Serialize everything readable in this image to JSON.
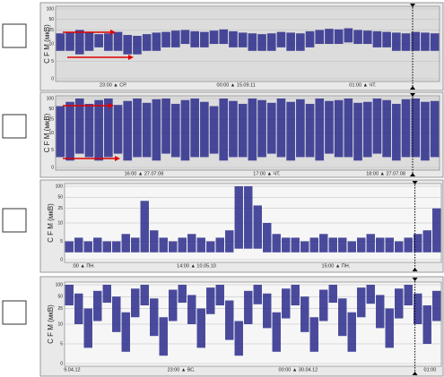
{
  "chart_data": [
    {
      "type": "line",
      "y_label": "C F M (мкВ)",
      "yscale": "semilog",
      "ylim": [
        0,
        100
      ],
      "yticks": [
        0,
        5,
        10,
        25,
        50,
        100
      ],
      "color": "#2b2b8c",
      "x_labels": [
        "23:00 ▲ СР.",
        "00:00 ▲ 15.09.11",
        "01:00 ▲ ЧТ."
      ],
      "upper": [
        20,
        22,
        25,
        21,
        19,
        20,
        22,
        18,
        17,
        19,
        21,
        22,
        24,
        25,
        23,
        22,
        24,
        26,
        23,
        21,
        20,
        19,
        20,
        22,
        21,
        20,
        23,
        25,
        27,
        26,
        28,
        25,
        24,
        23,
        22,
        21,
        20,
        22,
        21,
        20
      ],
      "lower": [
        8,
        8,
        7,
        8,
        9,
        8,
        8,
        7,
        7,
        8,
        8,
        9,
        9,
        10,
        9,
        9,
        10,
        10,
        9,
        9,
        8,
        8,
        8,
        9,
        8,
        8,
        9,
        10,
        10,
        10,
        11,
        10,
        10,
        9,
        9,
        8,
        8,
        8,
        8,
        8
      ]
    },
    {
      "type": "line",
      "y_label": "C F M (мкВ)",
      "yscale": "semilog",
      "ylim": [
        0,
        100
      ],
      "yticks": [
        0,
        5,
        10,
        25,
        50,
        100
      ],
      "color": "#2b2b8c",
      "x_labels": [
        "16:00 ▲ 27.07.08",
        "17:00 ▲ ЧТ.",
        "18:00 ▲ 27.07.08"
      ],
      "upper": [
        60,
        80,
        100,
        70,
        90,
        100,
        65,
        85,
        100,
        75,
        95,
        100,
        70,
        90,
        100,
        80,
        60,
        100,
        85,
        70,
        100,
        90,
        75,
        100,
        80,
        95,
        70,
        100,
        85,
        90,
        100,
        75,
        80,
        100,
        90,
        70,
        95,
        100,
        80,
        85
      ],
      "lower": [
        3,
        2,
        4,
        3,
        2,
        3,
        4,
        2,
        3,
        3,
        2,
        4,
        3,
        2,
        3,
        3,
        4,
        2,
        3,
        3,
        2,
        3,
        4,
        3,
        2,
        3,
        3,
        2,
        4,
        3,
        3,
        2,
        3,
        4,
        3,
        2,
        3,
        3,
        2,
        3
      ]
    },
    {
      "type": "line",
      "y_label": "C F M (мкВ)",
      "yscale": "semilog",
      "ylim": [
        0,
        100
      ],
      "yticks": [
        0,
        5,
        10,
        25,
        50,
        100
      ],
      "color": "#2b2b8c",
      "x_labels": ":00 ▲ ПН.",
      "x_labels_rest": [
        "14:00 ▲ 10.05.10",
        "15:00 ▲ ПН."
      ],
      "upper": [
        5,
        6,
        5,
        6,
        5,
        5,
        7,
        6,
        40,
        8,
        6,
        5,
        6,
        7,
        6,
        5,
        6,
        8,
        100,
        100,
        30,
        10,
        7,
        6,
        6,
        5,
        6,
        7,
        6,
        6,
        5,
        6,
        7,
        6,
        6,
        5,
        6,
        7,
        8,
        25
      ],
      "lower": [
        2,
        2,
        2,
        2,
        2,
        2,
        2,
        2,
        2,
        2,
        2,
        2,
        2,
        2,
        2,
        2,
        2,
        2,
        3,
        3,
        3,
        2,
        2,
        2,
        2,
        2,
        2,
        2,
        2,
        2,
        2,
        2,
        2,
        2,
        2,
        2,
        2,
        2,
        2,
        2
      ]
    },
    {
      "type": "line",
      "y_label": "C F M (мкВ)",
      "yscale": "semilog",
      "ylim": [
        0,
        100
      ],
      "yticks": [
        0,
        5,
        10,
        25,
        50,
        100
      ],
      "color": "#2b2b8c",
      "x_labels": [
        "9.04.12",
        "23:00 ▲ ВС.",
        "00:00 ▲ 30.04.12",
        "01:00"
      ],
      "upper": [
        100,
        60,
        25,
        70,
        100,
        50,
        20,
        80,
        100,
        45,
        15,
        75,
        100,
        55,
        25,
        85,
        100,
        40,
        12,
        70,
        100,
        60,
        20,
        80,
        100,
        50,
        15,
        75,
        100,
        45,
        20,
        85,
        100,
        55,
        25,
        80,
        100,
        60,
        30,
        70
      ],
      "lower": [
        30,
        10,
        4,
        12,
        35,
        8,
        3,
        15,
        30,
        7,
        2,
        12,
        35,
        10,
        4,
        18,
        30,
        6,
        2,
        10,
        32,
        9,
        3,
        14,
        30,
        8,
        3,
        12,
        35,
        7,
        3,
        15,
        33,
        9,
        4,
        14,
        30,
        10,
        5,
        12
      ]
    }
  ]
}
